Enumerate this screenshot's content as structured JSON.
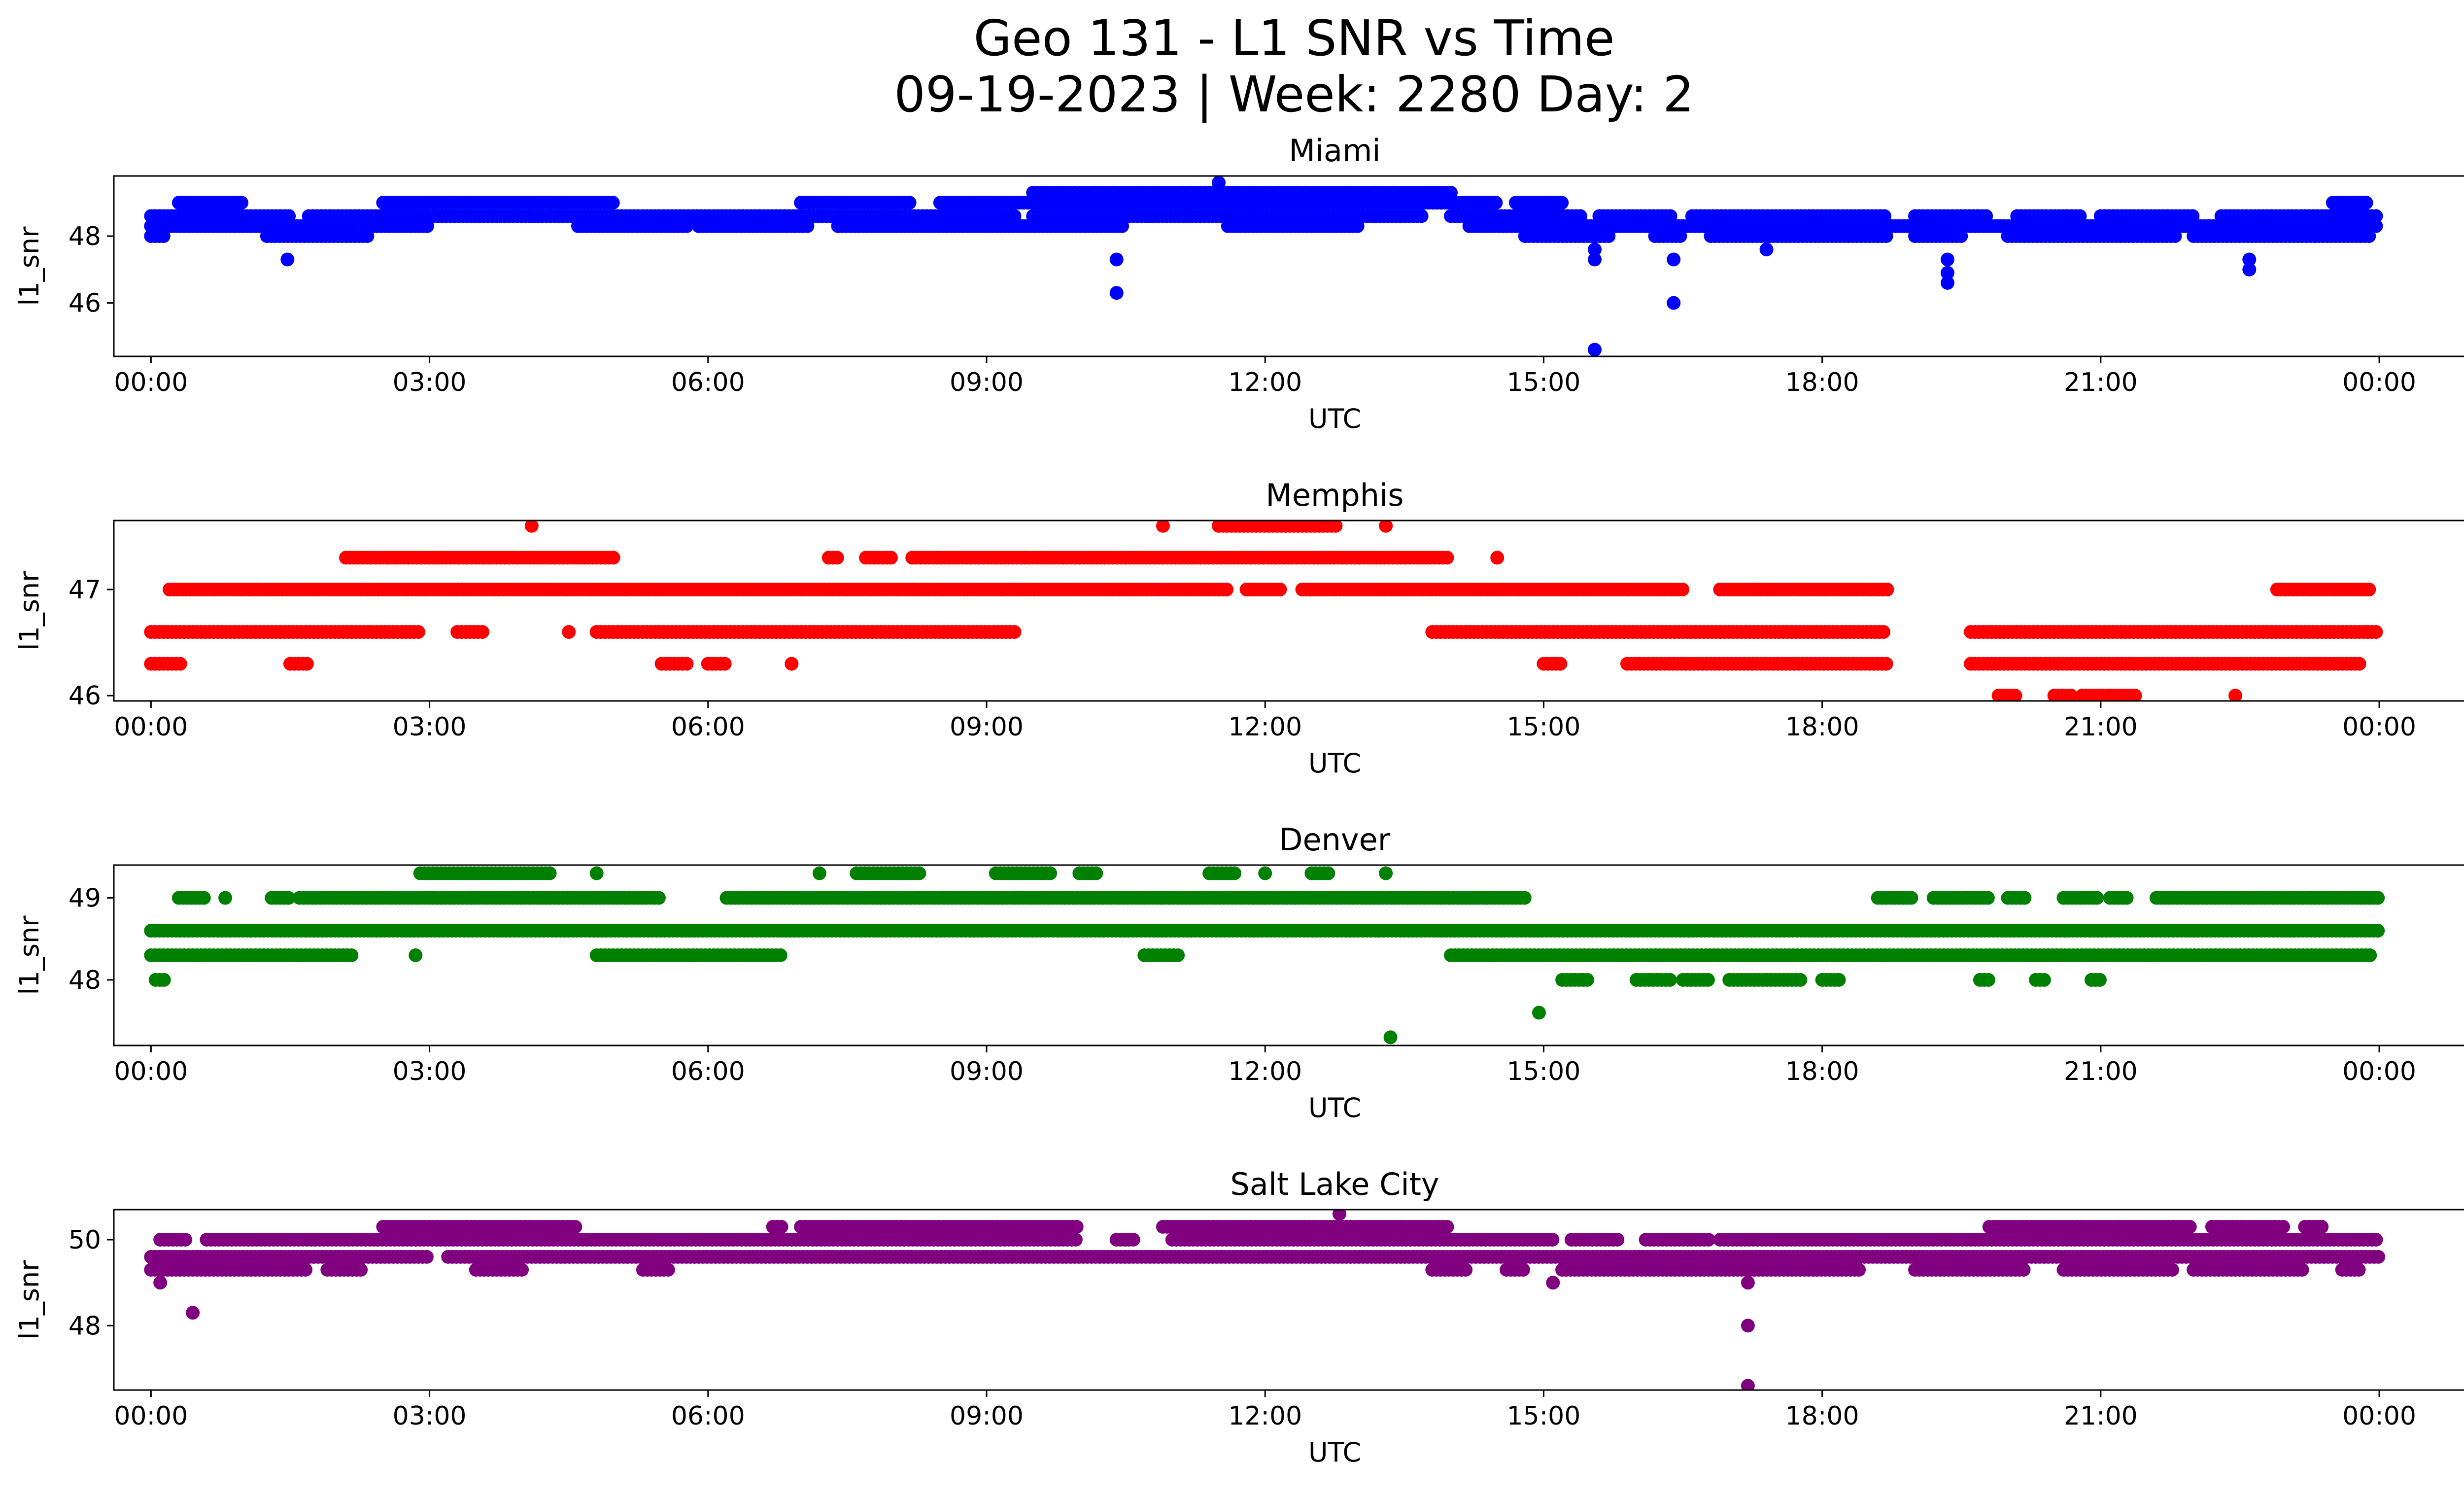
{
  "figure": {
    "title_line1": "Geo 131 - L1 SNR vs Time",
    "title_line2": "09-19-2023 | Week: 2280 Day: 2"
  },
  "chart_data": [
    {
      "type": "scatter",
      "title": "Miami",
      "xlabel": "UTC",
      "ylabel": "l1_snr",
      "color": "#0000ff",
      "x_ticks": [
        "00:00",
        "03:00",
        "06:00",
        "09:00",
        "12:00",
        "15:00",
        "18:00",
        "21:00",
        "00:00"
      ],
      "x_range_hours": [
        -0.4,
        25.9
      ],
      "yticks": [
        46,
        48
      ],
      "ylim": [
        44.4,
        49.8
      ],
      "bands": [
        {
          "y": 48.0,
          "ranges": [
            [
              0.0,
              0.15
            ],
            [
              1.25,
              2.35
            ],
            [
              14.8,
              15.7
            ],
            [
              16.2,
              16.5
            ],
            [
              16.8,
              18.7
            ],
            [
              19.0,
              19.5
            ],
            [
              20.0,
              21.8
            ],
            [
              22.0,
              23.9
            ]
          ]
        },
        {
          "y": 48.3,
          "ranges": [
            [
              0.0,
              2.2
            ],
            [
              2.3,
              3.0
            ],
            [
              4.6,
              5.8
            ],
            [
              5.9,
              7.1
            ],
            [
              7.4,
              10.5
            ],
            [
              11.6,
              13.0
            ],
            [
              14.2,
              24.0
            ]
          ]
        },
        {
          "y": 48.6,
          "ranges": [
            [
              0.0,
              1.5
            ],
            [
              1.7,
              3.0
            ],
            [
              3.0,
              9.3
            ],
            [
              9.5,
              13.7
            ],
            [
              14.0,
              15.4
            ],
            [
              15.6,
              16.4
            ],
            [
              16.6,
              18.7
            ],
            [
              19.0,
              19.8
            ],
            [
              20.1,
              20.8
            ],
            [
              21.0,
              22.0
            ],
            [
              22.3,
              24.0
            ]
          ]
        },
        {
          "y": 49.0,
          "ranges": [
            [
              0.3,
              1.0
            ],
            [
              2.5,
              5.0
            ],
            [
              7.0,
              8.2
            ],
            [
              8.5,
              14.5
            ],
            [
              14.7,
              15.2
            ],
            [
              23.5,
              23.9
            ]
          ]
        },
        {
          "y": 49.3,
          "ranges": [
            [
              9.5,
              14.0
            ]
          ]
        }
      ],
      "outliers": [
        [
          1.47,
          47.3
        ],
        [
          10.4,
          47.3
        ],
        [
          10.4,
          46.3
        ],
        [
          11.5,
          49.6
        ],
        [
          15.55,
          47.6
        ],
        [
          15.55,
          47.3
        ],
        [
          15.55,
          44.6
        ],
        [
          16.4,
          47.3
        ],
        [
          16.4,
          46.0
        ],
        [
          17.4,
          47.6
        ],
        [
          19.35,
          47.3
        ],
        [
          19.35,
          46.9
        ],
        [
          19.35,
          46.6
        ],
        [
          22.6,
          47.3
        ],
        [
          22.6,
          47.0
        ]
      ]
    },
    {
      "type": "scatter",
      "title": "Memphis",
      "xlabel": "UTC",
      "ylabel": "l1_snr",
      "color": "#ff0000",
      "x_ticks": [
        "00:00",
        "03:00",
        "06:00",
        "09:00",
        "12:00",
        "15:00",
        "18:00",
        "21:00",
        "00:00"
      ],
      "x_range_hours": [
        -0.4,
        25.9
      ],
      "yticks": [
        46,
        47
      ],
      "ylim": [
        45.95,
        47.65
      ],
      "bands": [
        {
          "y": 46.0,
          "ranges": [
            [
              19.9,
              20.1
            ],
            [
              20.5,
              20.7
            ],
            [
              20.8,
              21.1
            ],
            [
              21.1,
              21.4
            ]
          ]
        },
        {
          "y": 46.3,
          "ranges": [
            [
              0.0,
              0.35
            ],
            [
              1.5,
              1.7
            ],
            [
              5.5,
              5.8
            ],
            [
              6.0,
              6.2
            ],
            [
              6.9,
              6.9
            ],
            [
              15.0,
              15.2
            ],
            [
              15.9,
              18.7
            ],
            [
              19.6,
              23.8
            ]
          ]
        },
        {
          "y": 46.6,
          "ranges": [
            [
              0.0,
              2.9
            ],
            [
              3.3,
              3.6
            ],
            [
              4.5,
              4.5
            ],
            [
              4.8,
              9.3
            ],
            [
              13.8,
              18.7
            ],
            [
              19.6,
              24.0
            ]
          ]
        },
        {
          "y": 47.0,
          "ranges": [
            [
              0.2,
              11.6
            ],
            [
              11.8,
              12.2
            ],
            [
              12.4,
              16.5
            ],
            [
              16.9,
              18.7
            ],
            [
              22.9,
              23.9
            ]
          ]
        },
        {
          "y": 47.3,
          "ranges": [
            [
              2.1,
              5.0
            ],
            [
              7.3,
              7.4
            ],
            [
              7.7,
              8.0
            ],
            [
              8.2,
              14.0
            ],
            [
              14.5,
              14.5
            ]
          ]
        },
        {
          "y": 47.6,
          "ranges": [
            [
              4.1,
              4.1
            ],
            [
              10.9,
              10.9
            ],
            [
              11.5,
              12.8
            ],
            [
              13.3,
              13.3
            ]
          ]
        }
      ],
      "outliers": [
        [
          22.45,
          46.0
        ]
      ]
    },
    {
      "type": "scatter",
      "title": "Denver",
      "xlabel": "UTC",
      "ylabel": "l1_snr",
      "color": "#008000",
      "x_ticks": [
        "00:00",
        "03:00",
        "06:00",
        "09:00",
        "12:00",
        "15:00",
        "18:00",
        "21:00",
        "00:00"
      ],
      "x_range_hours": [
        -0.4,
        25.9
      ],
      "yticks": [
        48,
        49
      ],
      "ylim": [
        47.2,
        49.4
      ],
      "bands": [
        {
          "y": 48.0,
          "ranges": [
            [
              0.05,
              0.15
            ],
            [
              15.2,
              15.5
            ],
            [
              16.0,
              16.4
            ],
            [
              16.5,
              16.8
            ],
            [
              17.0,
              17.8
            ],
            [
              18.0,
              18.2
            ],
            [
              19.7,
              19.8
            ],
            [
              20.3,
              20.4
            ],
            [
              20.9,
              21.0
            ]
          ]
        },
        {
          "y": 48.3,
          "ranges": [
            [
              0.0,
              2.2
            ],
            [
              2.85,
              2.85
            ],
            [
              4.8,
              6.8
            ],
            [
              10.7,
              11.1
            ],
            [
              14.0,
              23.9
            ]
          ]
        },
        {
          "y": 48.6,
          "ranges": [
            [
              0.0,
              24.0
            ]
          ]
        },
        {
          "y": 49.0,
          "ranges": [
            [
              0.3,
              0.6
            ],
            [
              0.8,
              0.8
            ],
            [
              1.3,
              1.5
            ],
            [
              1.6,
              5.5
            ],
            [
              6.2,
              14.8
            ],
            [
              18.6,
              19.0
            ],
            [
              19.2,
              19.8
            ],
            [
              20.0,
              20.2
            ],
            [
              20.6,
              21.0
            ],
            [
              21.1,
              21.3
            ],
            [
              21.6,
              24.0
            ]
          ]
        },
        {
          "y": 49.3,
          "ranges": [
            [
              2.9,
              4.3
            ],
            [
              4.8,
              4.8
            ],
            [
              7.2,
              7.2
            ],
            [
              7.6,
              8.3
            ],
            [
              9.1,
              9.7
            ],
            [
              10.0,
              10.2
            ],
            [
              11.4,
              11.7
            ],
            [
              12.0,
              12.0
            ],
            [
              12.5,
              12.7
            ],
            [
              13.3,
              13.3
            ]
          ]
        }
      ],
      "outliers": [
        [
          13.35,
          47.3
        ],
        [
          14.95,
          47.6
        ]
      ]
    },
    {
      "type": "scatter",
      "title": "Salt Lake City",
      "xlabel": "UTC",
      "ylabel": "l1_snr",
      "color": "#800080",
      "x_ticks": [
        "00:00",
        "03:00",
        "06:00",
        "09:00",
        "12:00",
        "15:00",
        "18:00",
        "21:00",
        "00:00"
      ],
      "x_range_hours": [
        -0.4,
        25.9
      ],
      "yticks": [
        48,
        50
      ],
      "ylim": [
        46.5,
        50.7
      ],
      "bands": [
        {
          "y": 49.0,
          "ranges": [
            [
              0.1,
              0.1
            ],
            [
              15.1,
              15.1
            ],
            [
              17.2,
              17.2
            ]
          ]
        },
        {
          "y": 49.3,
          "ranges": [
            [
              0.0,
              1.7
            ],
            [
              1.9,
              2.3
            ],
            [
              3.5,
              4.0
            ],
            [
              5.3,
              5.6
            ],
            [
              13.8,
              14.2
            ],
            [
              14.6,
              14.8
            ],
            [
              15.2,
              18.4
            ],
            [
              19.0,
              20.2
            ],
            [
              20.6,
              21.8
            ],
            [
              22.0,
              23.2
            ],
            [
              23.6,
              23.8
            ]
          ]
        },
        {
          "y": 49.6,
          "ranges": [
            [
              0.0,
              3.0
            ],
            [
              3.2,
              24.0
            ]
          ]
        },
        {
          "y": 50.0,
          "ranges": [
            [
              0.1,
              0.4
            ],
            [
              0.6,
              10.0
            ],
            [
              10.4,
              10.6
            ],
            [
              11.0,
              15.1
            ],
            [
              15.3,
              15.8
            ],
            [
              16.1,
              16.8
            ],
            [
              16.9,
              24.0
            ]
          ]
        },
        {
          "y": 50.3,
          "ranges": [
            [
              2.5,
              4.6
            ],
            [
              6.7,
              6.8
            ],
            [
              7.0,
              10.0
            ],
            [
              10.9,
              14.0
            ],
            [
              19.8,
              22.0
            ],
            [
              22.2,
              23.0
            ],
            [
              23.2,
              23.4
            ]
          ]
        }
      ],
      "outliers": [
        [
          0.45,
          48.3
        ],
        [
          12.8,
          50.6
        ],
        [
          17.2,
          48.0
        ],
        [
          17.2,
          46.6
        ]
      ]
    }
  ]
}
